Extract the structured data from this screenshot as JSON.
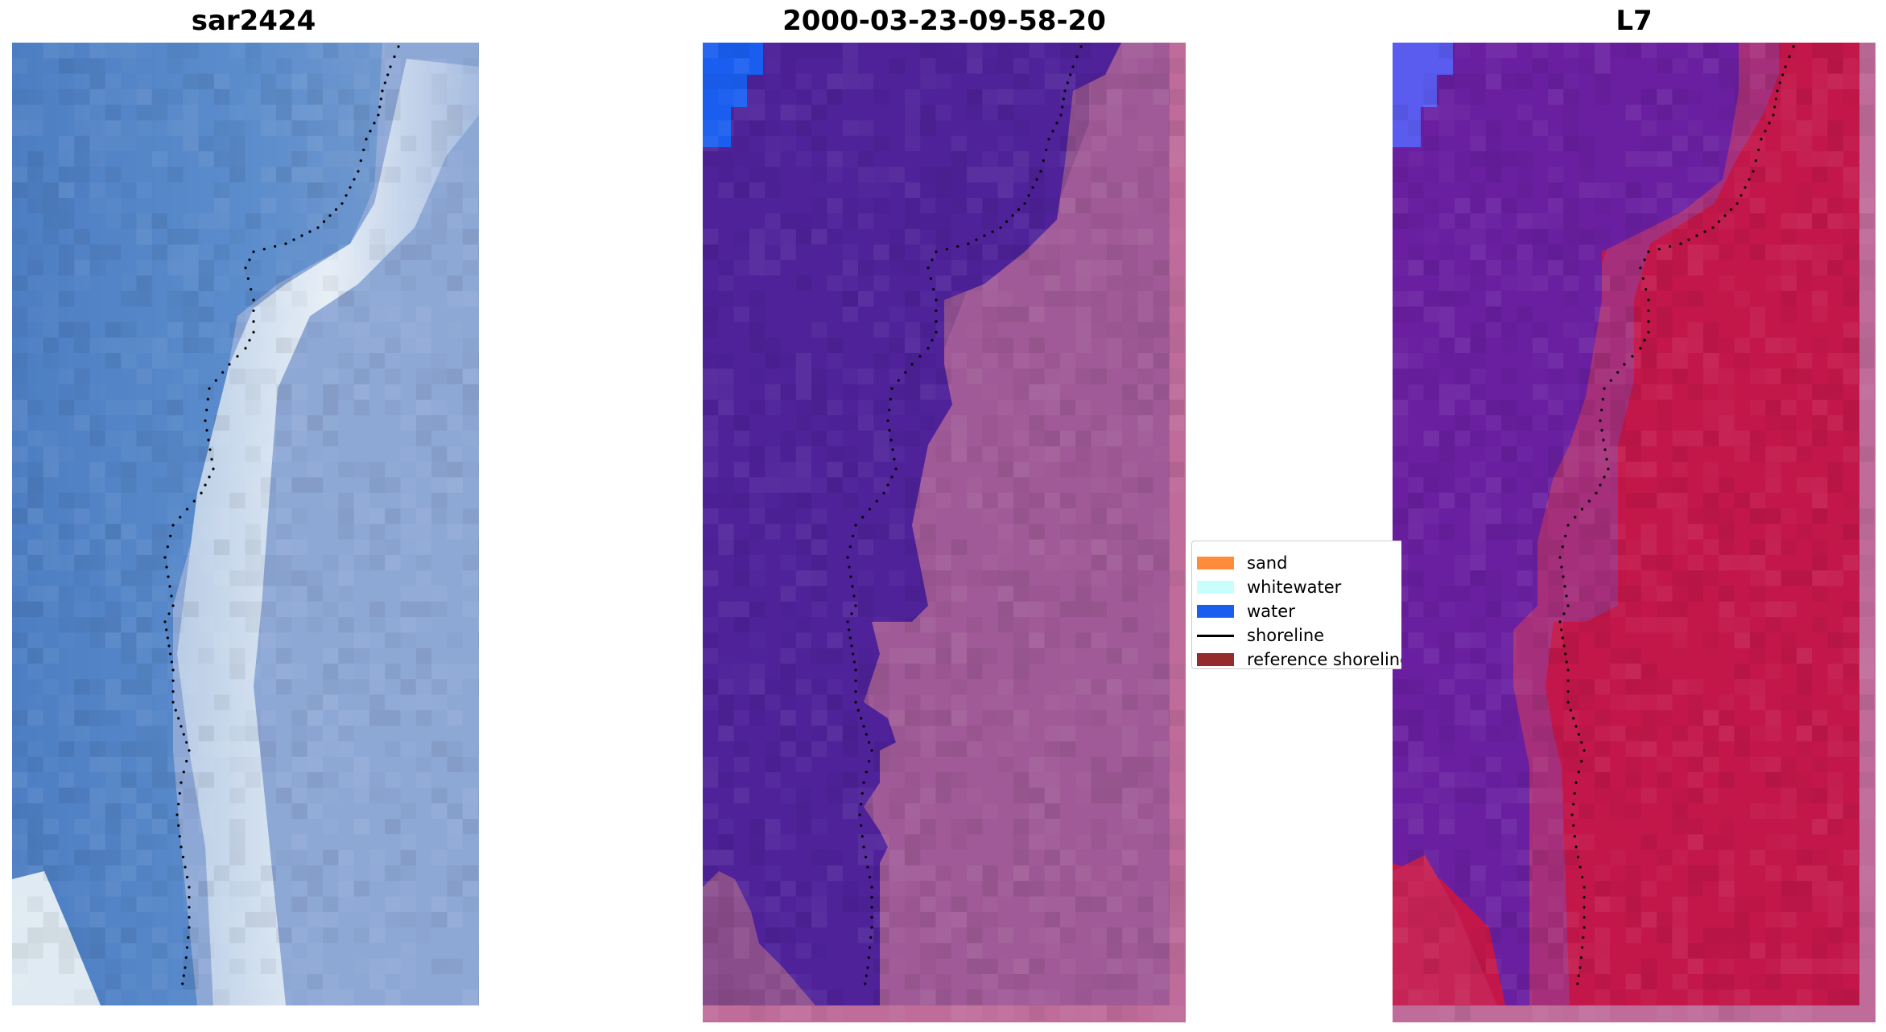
{
  "panels": {
    "left": {
      "title": "sar2424"
    },
    "middle": {
      "title": "2000-03-23-09-58-20"
    },
    "right": {
      "title": "L7"
    }
  },
  "legend": {
    "items": [
      {
        "label": "sand",
        "kind": "patch",
        "color": "#ff8c3a"
      },
      {
        "label": "whitewater",
        "kind": "patch",
        "color": "#c8fffd"
      },
      {
        "label": "water",
        "kind": "patch",
        "color": "#1a5ef0"
      },
      {
        "label": "shoreline",
        "kind": "line",
        "color": "#000000"
      },
      {
        "label": "reference shoreline",
        "kind": "patch",
        "color": "#952b2b"
      }
    ]
  },
  "colors": {
    "sea_rgb": "#4f80c0",
    "surf_white": "#e6eef6",
    "classified_water": "#4f229a",
    "classified_land": "#8a4d8c",
    "classified_border": "#bf6c9a",
    "classified_water_corner": "#1a5ef0",
    "index_water": "#6a1fa0",
    "index_land": "#c3174a",
    "index_corner": "#5a5cf0"
  }
}
